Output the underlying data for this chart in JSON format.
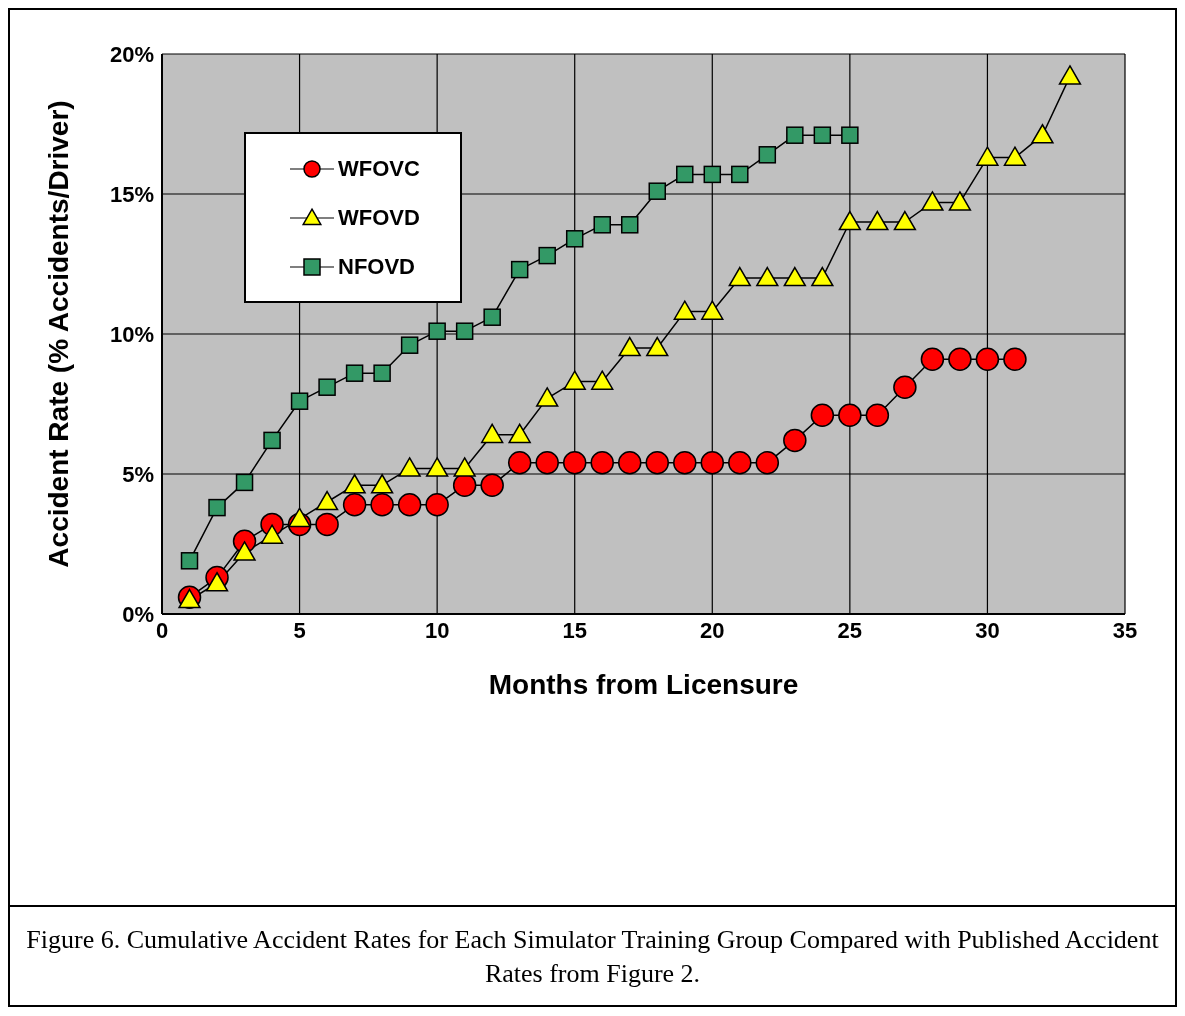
{
  "chart_data": {
    "type": "line",
    "xlabel": "Months from Licensure",
    "ylabel": "Accident Rate (% Accidents/Driver)",
    "annotations": [
      "Figure 6.  Cumulative Accident Rates for Each Simulator Training Group Compared with Published Accident Rates from Figure 2."
    ],
    "xlim": [
      0,
      35
    ],
    "xticks": [
      0,
      5,
      10,
      15,
      20,
      25,
      30,
      35
    ],
    "ylim": [
      0,
      20
    ],
    "yticks": [
      {
        "value": 0,
        "label": "0%"
      },
      {
        "value": 5,
        "label": "5%"
      },
      {
        "value": 10,
        "label": "10%"
      },
      {
        "value": 15,
        "label": "15%"
      },
      {
        "value": 20,
        "label": "20%"
      }
    ],
    "grid": true,
    "legend": "top left",
    "series": [
      {
        "name": "WFOVC",
        "color": "#ff0000",
        "marker": "circle",
        "x": [
          1,
          2,
          3,
          4,
          5,
          6,
          7,
          8,
          9,
          10,
          11,
          12,
          13,
          14,
          15,
          16,
          17,
          18,
          19,
          20,
          21,
          22,
          23,
          24,
          25,
          26,
          27,
          28,
          29,
          30,
          31
        ],
        "values": [
          0.6,
          1.3,
          2.6,
          3.2,
          3.2,
          3.2,
          3.9,
          3.9,
          3.9,
          3.9,
          4.6,
          4.6,
          5.4,
          5.4,
          5.4,
          5.4,
          5.4,
          5.4,
          5.4,
          5.4,
          5.4,
          5.4,
          6.2,
          7.1,
          7.1,
          7.1,
          8.1,
          9.1,
          9.1,
          9.1,
          9.1
        ]
      },
      {
        "name": "WFOVD",
        "color": "#ffff00",
        "marker": "triangle",
        "x": [
          1,
          2,
          3,
          4,
          5,
          6,
          7,
          8,
          9,
          10,
          11,
          12,
          13,
          14,
          15,
          16,
          17,
          18,
          19,
          20,
          21,
          22,
          23,
          24,
          25,
          26,
          27,
          28,
          29,
          30,
          31,
          32,
          33
        ],
        "values": [
          0.5,
          1.1,
          2.2,
          2.8,
          3.4,
          4.0,
          4.6,
          4.6,
          5.2,
          5.2,
          5.2,
          6.4,
          6.4,
          7.7,
          8.3,
          8.3,
          9.5,
          9.5,
          10.8,
          10.8,
          12.0,
          12.0,
          12.0,
          12.0,
          14.0,
          14.0,
          14.0,
          14.7,
          14.7,
          16.3,
          16.3,
          17.1,
          19.2
        ]
      },
      {
        "name": "NFOVD",
        "color": "#339966",
        "marker": "square",
        "x": [
          1,
          2,
          3,
          4,
          5,
          6,
          7,
          8,
          9,
          10,
          11,
          12,
          13,
          14,
          15,
          16,
          17,
          18,
          19,
          20,
          21,
          22,
          23,
          24,
          25
        ],
        "values": [
          1.9,
          3.8,
          4.7,
          6.2,
          7.6,
          8.1,
          8.6,
          8.6,
          9.6,
          10.1,
          10.1,
          10.6,
          12.3,
          12.8,
          13.4,
          13.9,
          13.9,
          15.1,
          15.7,
          15.7,
          15.7,
          16.4,
          17.1,
          17.1,
          17.1
        ]
      }
    ]
  }
}
